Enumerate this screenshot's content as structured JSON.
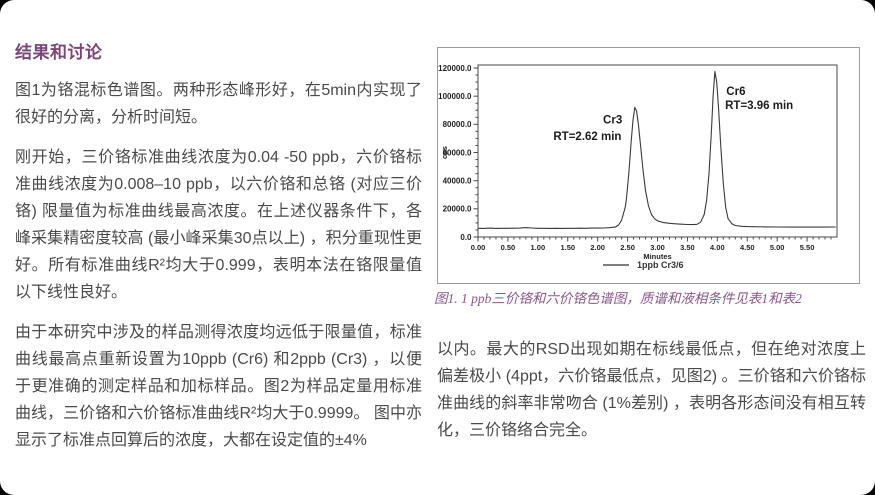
{
  "page": {
    "heading": "结果和讨论",
    "left_paragraphs": [
      "图1为铬混标色谱图。两种形态峰形好，在5min内实现了很好的分离，分析时间短。",
      "刚开始，三价铬标准曲线浓度为0.04 -50 ppb，六价铬标准曲线浓度为0.008–10 ppb，以六价铬和总铬 (对应三价铬) 限量值为标准曲线最高浓度。在上述仪器条件下，各峰采集精密度较高 (最小峰采集30点以上) ，积分重现性更好。所有标准曲线R²均大于0.999，表明本法在铬限量值以下线性良好。",
      "由于本研究中涉及的样品测得浓度均远低于限量值，标准曲线最高点重新设置为10ppb (Cr6) 和2ppb (Cr3) ，以便于更准确的测定样品和加标样品。图2为样品定量用标准曲线，三价铬和六价铬标准曲线R²均大于0.9999。  图中亦显示了标准点回算后的浓度，大都在设定值的±4%"
    ],
    "figure_caption": "图1. 1 ppb三价铬和六价铬色谱图，质谱和液相条件见表1和表2",
    "right_paragraph": "以内。最大的RSD出现如期在标线最低点，但在绝对浓度上偏差极小 (4ppt，六价铬最低点，见图2) 。三价铬和六价铬标准曲线的斜率非常吻合 (1%差别) ，表明各形态间没有相互转化，三价铬络合完全。"
  },
  "colors": {
    "accent_purple": "#7a4877",
    "caption_purple": "#8a568a",
    "body_text": "#4a4a4a",
    "trace": "#3a3a3a",
    "legend_line_gray": "#7f7f7f",
    "figure_border": "#9b9b9b",
    "page_bg": "#ffffff",
    "canvas_bg": "#000000"
  },
  "chart_data": {
    "type": "line",
    "title": "",
    "xlabel": "Minutes",
    "ylabel": "cps",
    "xlim": [
      0,
      6.0
    ],
    "ylim": [
      0,
      120000
    ],
    "grid": false,
    "legend_position": "bottom-center",
    "x_ticks": [
      0.0,
      0.5,
      1.0,
      1.5,
      2.0,
      2.5,
      3.0,
      3.5,
      4.0,
      4.5,
      5.0,
      5.5
    ],
    "x_tick_labels": [
      "0.00",
      "0.50",
      "1.00",
      "1.50",
      "2.00",
      "2.50",
      "3.00",
      "3.50",
      "4.00",
      "4.50",
      "5.00",
      "5.50"
    ],
    "x_minor_step": 0.1,
    "y_ticks": [
      0,
      20000,
      40000,
      60000,
      80000,
      100000,
      120000
    ],
    "y_tick_labels": [
      "0.0",
      "20000.0",
      "40000.0",
      "60000.0",
      "80000.0",
      "100000.0",
      "120000.0"
    ],
    "y_minor_step": 5000,
    "legend": [
      {
        "label": "1ppb Cr3/6"
      }
    ],
    "peaks": [
      {
        "name": "Cr3",
        "rt_min": 2.62,
        "height_cps": 92000
      },
      {
        "name": "Cr6",
        "rt_min": 3.96,
        "height_cps": 117500
      }
    ],
    "annotations": [
      {
        "text": "Cr3",
        "x": 2.09,
        "y": 80500,
        "anchor": "start"
      },
      {
        "text": "RT=2.62 min",
        "x": 1.26,
        "y": 69000,
        "anchor": "start"
      },
      {
        "text": "Cr6",
        "x": 4.15,
        "y": 101000,
        "anchor": "start"
      },
      {
        "text": "RT=3.96 min",
        "x": 4.13,
        "y": 91000,
        "anchor": "start"
      }
    ],
    "series": [
      {
        "name": "1ppb Cr3/6",
        "points": [
          [
            0.0,
            6200
          ],
          [
            0.1,
            6100
          ],
          [
            0.2,
            6300
          ],
          [
            0.3,
            6100
          ],
          [
            0.4,
            6200
          ],
          [
            0.5,
            6150
          ],
          [
            0.6,
            6250
          ],
          [
            0.7,
            6300
          ],
          [
            0.8,
            6700
          ],
          [
            0.9,
            6400
          ],
          [
            1.0,
            6200
          ],
          [
            1.1,
            6150
          ],
          [
            1.2,
            6100
          ],
          [
            1.3,
            6150
          ],
          [
            1.4,
            6100
          ],
          [
            1.5,
            6200
          ],
          [
            1.6,
            6150
          ],
          [
            1.7,
            6250
          ],
          [
            1.8,
            6200
          ],
          [
            1.9,
            6300
          ],
          [
            2.0,
            6350
          ],
          [
            2.1,
            6400
          ],
          [
            2.2,
            6600
          ],
          [
            2.3,
            7200
          ],
          [
            2.35,
            8500
          ],
          [
            2.4,
            12000
          ],
          [
            2.44,
            18000
          ],
          [
            2.46,
            21000
          ],
          [
            2.48,
            27000
          ],
          [
            2.52,
            45000
          ],
          [
            2.56,
            68000
          ],
          [
            2.59,
            83000
          ],
          [
            2.62,
            92000
          ],
          [
            2.65,
            89500
          ],
          [
            2.68,
            80000
          ],
          [
            2.72,
            64000
          ],
          [
            2.76,
            47000
          ],
          [
            2.8,
            33000
          ],
          [
            2.85,
            22000
          ],
          [
            2.9,
            16000
          ],
          [
            2.95,
            13000
          ],
          [
            3.0,
            11500
          ],
          [
            3.1,
            10200
          ],
          [
            3.2,
            9700
          ],
          [
            3.3,
            9400
          ],
          [
            3.4,
            9100
          ],
          [
            3.5,
            8900
          ],
          [
            3.6,
            8800
          ],
          [
            3.66,
            9000
          ],
          [
            3.72,
            10500
          ],
          [
            3.78,
            16000
          ],
          [
            3.82,
            26000
          ],
          [
            3.86,
            45000
          ],
          [
            3.9,
            75000
          ],
          [
            3.93,
            100000
          ],
          [
            3.96,
            117500
          ],
          [
            3.99,
            110000
          ],
          [
            4.02,
            92000
          ],
          [
            4.06,
            63000
          ],
          [
            4.1,
            38000
          ],
          [
            4.14,
            21000
          ],
          [
            4.18,
            13000
          ],
          [
            4.24,
            9500
          ],
          [
            4.3,
            8200
          ],
          [
            4.4,
            7600
          ],
          [
            4.5,
            7400
          ],
          [
            4.6,
            7300
          ],
          [
            4.8,
            7200
          ],
          [
            5.0,
            7100
          ],
          [
            5.2,
            7050
          ],
          [
            5.4,
            7000
          ],
          [
            5.6,
            7050
          ],
          [
            5.8,
            7000
          ],
          [
            5.98,
            7100
          ]
        ]
      }
    ]
  }
}
